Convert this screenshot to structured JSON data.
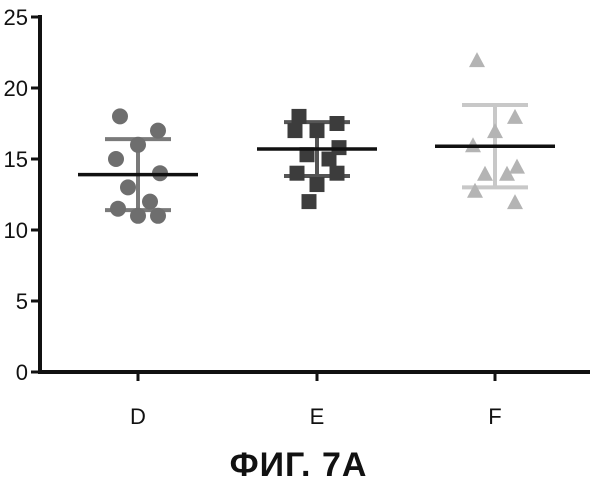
{
  "chart_data": {
    "type": "scatter",
    "title": "",
    "xlabel": "",
    "ylabel": "",
    "categories": [
      "D",
      "E",
      "F"
    ],
    "ylim": [
      0,
      25
    ],
    "y_ticks": [
      0,
      5,
      10,
      15,
      20,
      25
    ],
    "y_tick_labels": [
      "0",
      "5",
      "10",
      "15",
      "20",
      "25"
    ],
    "grid": false,
    "legend": "none",
    "series": [
      {
        "category": "D",
        "marker": "circle",
        "color": "#6e6e6e",
        "values": [
          18,
          17,
          16,
          15,
          14,
          13,
          12,
          11.5,
          11,
          11
        ],
        "mean": 13.9,
        "sd_upper": 16.4,
        "sd_lower": 11.4
      },
      {
        "category": "E",
        "marker": "square",
        "color": "#3c3c3c",
        "values": [
          18,
          17.5,
          17,
          17,
          15.8,
          15.3,
          15,
          14,
          14,
          13.2,
          12
        ],
        "mean": 15.7,
        "sd_upper": 17.6,
        "sd_lower": 13.8
      },
      {
        "category": "F",
        "marker": "triangle",
        "color": "#b4b4b4",
        "values": [
          22,
          18,
          17,
          16,
          14.5,
          14,
          14,
          12.8,
          12
        ],
        "mean": 15.9,
        "sd_upper": 18.8,
        "sd_lower": 13
      }
    ],
    "colors": {
      "axis": "#111111",
      "mean_line": "#111111",
      "error_bar_D": "#7a7a7a",
      "error_bar_E": "#555555",
      "error_bar_F": "#c8c8c8"
    }
  },
  "caption": "ФИГ. 7А"
}
